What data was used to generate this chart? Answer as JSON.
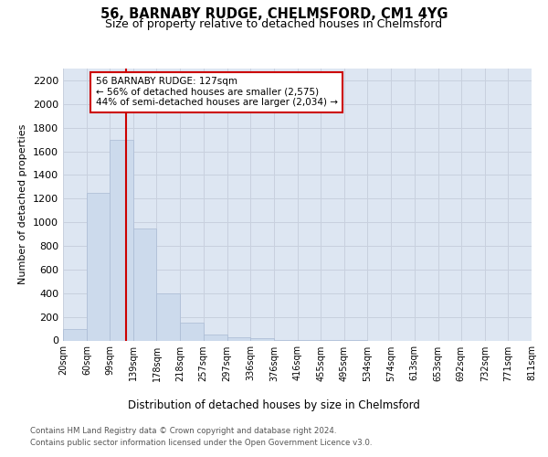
{
  "title_line1": "56, BARNABY RUDGE, CHELMSFORD, CM1 4YG",
  "title_line2": "Size of property relative to detached houses in Chelmsford",
  "xlabel": "Distribution of detached houses by size in Chelmsford",
  "ylabel": "Number of detached properties",
  "bar_color": "#ccdaec",
  "bar_edge_color": "#aabbd4",
  "grid_color": "#c8d0de",
  "background_color": "#dde6f2",
  "vline_x": 127,
  "vline_color": "#cc0000",
  "annotation_text": "56 BARNABY RUDGE: 127sqm\n← 56% of detached houses are smaller (2,575)\n44% of semi-detached houses are larger (2,034) →",
  "annotation_box_color": "#ffffff",
  "annotation_box_edge": "#cc0000",
  "bin_edges": [
    20,
    60,
    99,
    139,
    178,
    218,
    257,
    297,
    336,
    376,
    416,
    455,
    495,
    534,
    574,
    613,
    653,
    692,
    732,
    771,
    811
  ],
  "bar_heights": [
    100,
    1250,
    1700,
    950,
    400,
    150,
    50,
    30,
    20,
    5,
    2,
    1,
    1,
    0,
    0,
    0,
    0,
    0,
    0,
    0
  ],
  "ylim": [
    0,
    2300
  ],
  "yticks": [
    0,
    200,
    400,
    600,
    800,
    1000,
    1200,
    1400,
    1600,
    1800,
    2000,
    2200
  ],
  "footer_line1": "Contains HM Land Registry data © Crown copyright and database right 2024.",
  "footer_line2": "Contains public sector information licensed under the Open Government Licence v3.0.",
  "tick_labels": [
    "20sqm",
    "60sqm",
    "99sqm",
    "139sqm",
    "178sqm",
    "218sqm",
    "257sqm",
    "297sqm",
    "336sqm",
    "376sqm",
    "416sqm",
    "455sqm",
    "495sqm",
    "534sqm",
    "574sqm",
    "613sqm",
    "653sqm",
    "692sqm",
    "732sqm",
    "771sqm",
    "811sqm"
  ]
}
